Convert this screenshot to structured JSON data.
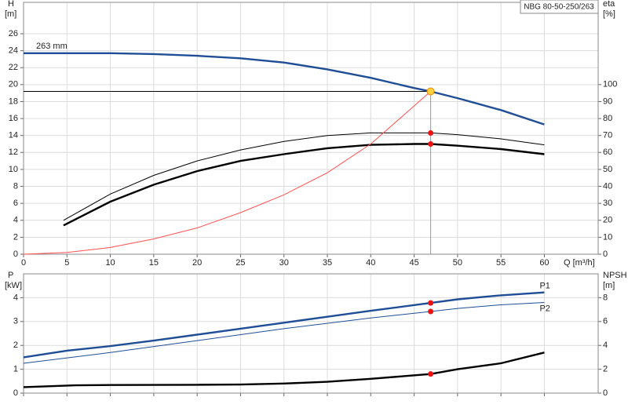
{
  "chart_data": [
    {
      "type": "line",
      "title": "NBG 80-50-250/263",
      "ylabel": "H",
      "yunit": "[m]",
      "y2label": "eta",
      "y2unit": "[%]",
      "xlabel": "Q [m³/h]",
      "xlim": [
        0,
        66.2
      ],
      "xticks": [
        0,
        5,
        10,
        15,
        20,
        25,
        30,
        35,
        40,
        45,
        50,
        55,
        60
      ],
      "ylim": [
        0,
        29.7
      ],
      "yticks": [
        0,
        2,
        4,
        6,
        8,
        10,
        12,
        14,
        16,
        18,
        20,
        22,
        24,
        26
      ],
      "y2lim": [
        0,
        148.5
      ],
      "y2ticks": [
        0,
        10,
        20,
        30,
        40,
        50,
        60,
        70,
        80,
        90,
        100
      ],
      "grid": true,
      "duty_point": {
        "q": 46.9,
        "h": 19.2
      },
      "series": [
        {
          "name": "263 mm",
          "color": "#1f4e96",
          "width": 2,
          "marker_color": "#ffd23f",
          "x": [
            0,
            10,
            15,
            20,
            25,
            30,
            35,
            40,
            45,
            46.9,
            50,
            55,
            60
          ],
          "values": [
            23.7,
            23.7,
            23.6,
            23.4,
            23.1,
            22.6,
            21.8,
            20.8,
            19.6,
            19.2,
            18.4,
            17.0,
            15.3
          ]
        },
        {
          "color": "#000000",
          "width": 1,
          "axis": "y2",
          "marker_color": "#ee1111",
          "x": [
            4.6,
            10,
            15,
            20,
            25,
            30,
            35,
            40,
            45,
            46.9,
            50,
            55,
            60
          ],
          "values": [
            20,
            35.5,
            46.5,
            55,
            61.5,
            66.5,
            70,
            71.5,
            71.5,
            71.5,
            70.5,
            68,
            64.5
          ]
        },
        {
          "color": "#000000",
          "width": 2,
          "axis": "y2",
          "marker_color": "#ee1111",
          "x": [
            4.6,
            10,
            15,
            20,
            25,
            30,
            35,
            40,
            45,
            46.9,
            50,
            55,
            60
          ],
          "values": [
            17,
            31,
            41,
            49,
            55,
            59,
            62.5,
            64.5,
            65,
            65,
            64,
            62,
            59
          ]
        },
        {
          "color": "#ff5050",
          "width": 1,
          "x": [
            0,
            5,
            10,
            15,
            20,
            25,
            30,
            35,
            40,
            46.9
          ],
          "values": [
            0,
            0.2,
            0.8,
            1.8,
            3.1,
            4.9,
            7.0,
            9.6,
            13.0,
            19.2
          ]
        }
      ]
    },
    {
      "type": "line",
      "ylabel": "P",
      "yunit": "[kW]",
      "y2label": "NPSH",
      "y2unit": "[m]",
      "xlim": [
        0,
        66.2
      ],
      "xticks": [
        0,
        5,
        10,
        15,
        20,
        25,
        30,
        35,
        40,
        45,
        50,
        55,
        60
      ],
      "ylim": [
        0,
        5
      ],
      "yticks": [
        0,
        1,
        2,
        3,
        4
      ],
      "y2lim": [
        0,
        10
      ],
      "y2ticks": [
        0,
        2,
        4,
        6,
        8
      ],
      "grid": true,
      "duty_point": {
        "q": 46.9
      },
      "series": [
        {
          "name": "P1",
          "color": "#1f4e96",
          "width": 2,
          "marker_color": "#ee1111",
          "x": [
            0,
            5,
            10,
            15,
            20,
            25,
            30,
            35,
            40,
            46.9,
            50,
            55,
            60
          ],
          "values": [
            1.5,
            1.78,
            1.97,
            2.2,
            2.45,
            2.7,
            2.95,
            3.2,
            3.45,
            3.78,
            3.93,
            4.1,
            4.22
          ]
        },
        {
          "name": "P2",
          "color": "#1f4e96",
          "width": 1,
          "marker_color": "#ee1111",
          "x": [
            0,
            10,
            20,
            30,
            40,
            46.9,
            50,
            55,
            60
          ],
          "values": [
            1.25,
            1.7,
            2.2,
            2.7,
            3.15,
            3.42,
            3.55,
            3.7,
            3.8
          ]
        },
        {
          "color": "#000000",
          "width": 2,
          "axis": "y2",
          "marker_color": "#ee1111",
          "x": [
            0,
            6,
            10,
            20,
            25,
            30,
            35,
            40,
            46.9,
            50,
            55,
            60
          ],
          "values": [
            0.5,
            0.65,
            0.68,
            0.7,
            0.72,
            0.8,
            0.95,
            1.2,
            1.6,
            2.0,
            2.5,
            3.4
          ]
        }
      ]
    }
  ]
}
